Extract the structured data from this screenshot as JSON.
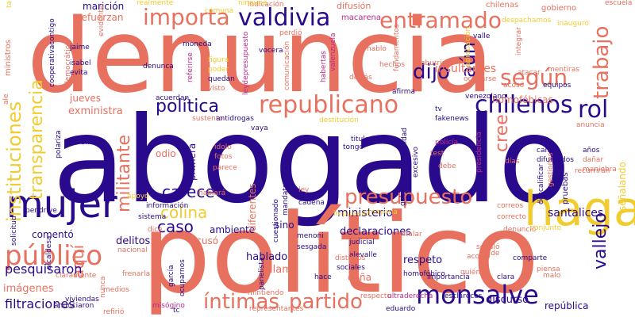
{
  "palette": {
    "indigo": "#2a0a8c",
    "coral": "#e8705e",
    "yellow": "#f2cc2f",
    "magenta": "#c02a8a"
  },
  "words": [
    "denuncia",
    "abogado",
    "político",
    "hagan",
    "mujer",
    "valdivia",
    "público",
    "entramado",
    "importa",
    "republicano",
    "presupuesto",
    "monsalve",
    "íntimas",
    "partido",
    "chilenos",
    "rol",
    "según",
    "trabajo",
    "instituciones",
    "transparencia",
    "política",
    "dijo",
    "aún",
    "cree",
    "militante",
    "carece",
    "colina",
    "caso",
    "aquí",
    "vallejo",
    "pesquisaron",
    "filtraciones",
    "imágenes",
    "ministerio",
    "declaraciones",
    "respeto",
    "hablado",
    "llamo",
    "insultantes",
    "homofóbicas",
    "exministra",
    "jueves",
    "refuerzan",
    "marición",
    "realmente",
    "difusión",
    "macarena",
    "chilenas",
    "gobierno",
    "indicación",
    "ministros",
    "pruebas",
    "santalices",
    "señalando",
    "discurso",
    "república",
    "comentó",
    "delitos",
    "ambiente",
    "acusó",
    "diferentes",
    "primera",
    "odio",
    "inventado",
    "polariza",
    "jaime",
    "isabel",
    "evita",
    "denunca",
    "moneda",
    "vocera",
    "perdió",
    "figura",
    "poder",
    "quedan",
    "visto",
    "acuerdan",
    "sustento",
    "antidrogas",
    "vaya",
    "idolo",
    "fotos",
    "parece",
    "hablará",
    "ley",
    "cadena",
    "titular",
    "tongo",
    "fakenews",
    "test",
    "red",
    "camila",
    "años",
    "dañar",
    "maniobra",
    "recurrirán",
    "correos",
    "correcto",
    "denunció",
    "instalar",
    "judicial",
    "menoni",
    "sesgada",
    "alevalle",
    "sociales",
    "cuestionado",
    "homofóbico",
    "hace",
    "daña",
    "mintiendo",
    "misógino",
    "garcía",
    "tc",
    "representantes",
    "eduardo",
    "esclarecer",
    "respecto",
    "ultraderecha",
    "viviendas",
    "anunciaron",
    "claramente",
    "frenarla",
    "sino",
    "mayoría",
    "tv",
    "afirma",
    "detrás",
    "hablo",
    "valle",
    "hechos",
    "ocuparse",
    "acosó",
    "aburrido",
    "atacar",
    "equipos",
    "mentiras",
    "integrar",
    "aprobación",
    "señaló",
    "quién",
    "pide",
    "clara",
    "comparte",
    "conjunto",
    "acogió",
    "importancia",
    "gabrielboric",
    "excesivo",
    "mandatario",
    "responsabilidad",
    "presidencia",
    "días",
    "descalificar",
    "gestiones",
    "difundidos",
    "venezolano",
    "pendrive",
    "nacional",
    "información",
    "sistema",
    "dice",
    "solicitud",
    "alcaldesa",
    "medios",
    "nunca",
    "refirió",
    "apoyo",
    "comuna",
    "ninguna",
    "ocuparnos",
    "panelista",
    "distintos",
    "impulsado",
    "cooperativacontigo",
    "democrático",
    "evidente",
    "referirse",
    "leydepresupuesto",
    "valenzuela",
    "comunicación",
    "destitución",
    "habertas",
    "fundamentos",
    "inauguró",
    "despachamos",
    "anuncia",
    "debe",
    "escuela",
    "policía",
    "malo",
    "piensa",
    "ale",
    "tarea"
  ]
}
